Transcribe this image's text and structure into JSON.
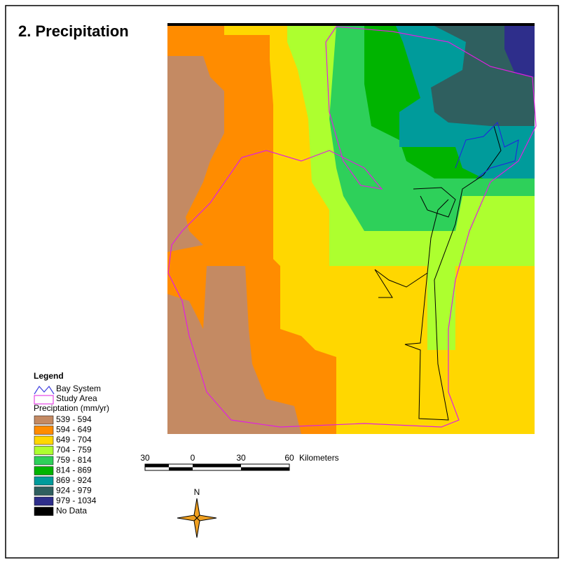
{
  "title": "2.  Precipitation",
  "legend": {
    "title": "Legend",
    "bay_system": "Bay System",
    "study_area": "Study Area",
    "classes_title": "Preciptation (mm/yr)",
    "classes": [
      {
        "label": "539 - 594",
        "color": "#c48a63"
      },
      {
        "label": "594 - 649",
        "color": "#ff8c00"
      },
      {
        "label": "649 - 704",
        "color": "#ffd700"
      },
      {
        "label": "704 - 759",
        "color": "#adff2f"
      },
      {
        "label": "759 - 814",
        "color": "#2ed05a"
      },
      {
        "label": "814 - 869",
        "color": "#00b400"
      },
      {
        "label": "869 - 924",
        "color": "#009b9b"
      },
      {
        "label": "924 - 979",
        "color": "#2f5f5f"
      },
      {
        "label": "979 - 1034",
        "color": "#2e2e8b"
      },
      {
        "label": "No Data",
        "color": "#000000"
      }
    ]
  },
  "scale_bar": {
    "labels": [
      "30",
      "0",
      "30",
      "60"
    ],
    "unit": "Kilometers"
  },
  "north_arrow": {
    "label": "N"
  }
}
